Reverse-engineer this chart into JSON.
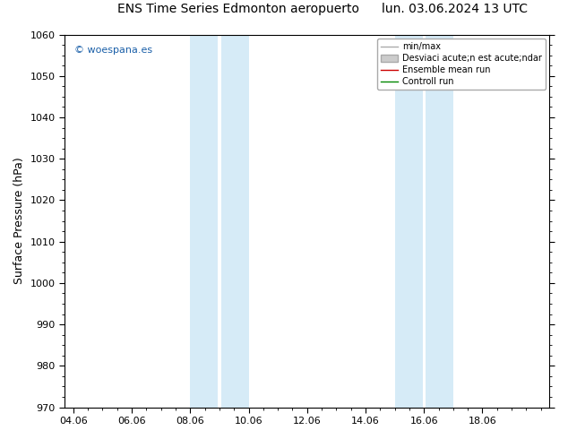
{
  "title_left": "ENS Time Series Edmonton aeropuerto",
  "title_right": "lun. 03.06.2024 13 UTC",
  "ylabel": "Surface Pressure (hPa)",
  "ylim": [
    970,
    1060
  ],
  "yticks": [
    970,
    980,
    990,
    1000,
    1010,
    1020,
    1030,
    1040,
    1050,
    1060
  ],
  "xtick_labels": [
    "04.06",
    "06.06",
    "08.06",
    "10.06",
    "12.06",
    "14.06",
    "16.06",
    "18.06"
  ],
  "xtick_positions": [
    0,
    2,
    4,
    6,
    8,
    10,
    12,
    14
  ],
  "xlim": [
    -0.3,
    16.3
  ],
  "shaded_bands": [
    {
      "xstart": 4.0,
      "xend": 4.95
    },
    {
      "xstart": 5.05,
      "xend": 6.0
    },
    {
      "xstart": 11.0,
      "xend": 11.95
    },
    {
      "xstart": 12.05,
      "xend": 13.0
    }
  ],
  "shade_color": "#d6ebf7",
  "watermark": "© woespana.es",
  "watermark_color": "#1a5fa8",
  "bg_color": "#ffffff",
  "plot_bg_color": "#ffffff",
  "title_fontsize": 10,
  "tick_fontsize": 8,
  "ylabel_fontsize": 9,
  "legend_fontsize": 7,
  "legend_min_max_color": "#aaaaaa",
  "legend_std_color": "#cccccc",
  "legend_ensemble_color": "#cc0000",
  "legend_control_color": "#008800"
}
